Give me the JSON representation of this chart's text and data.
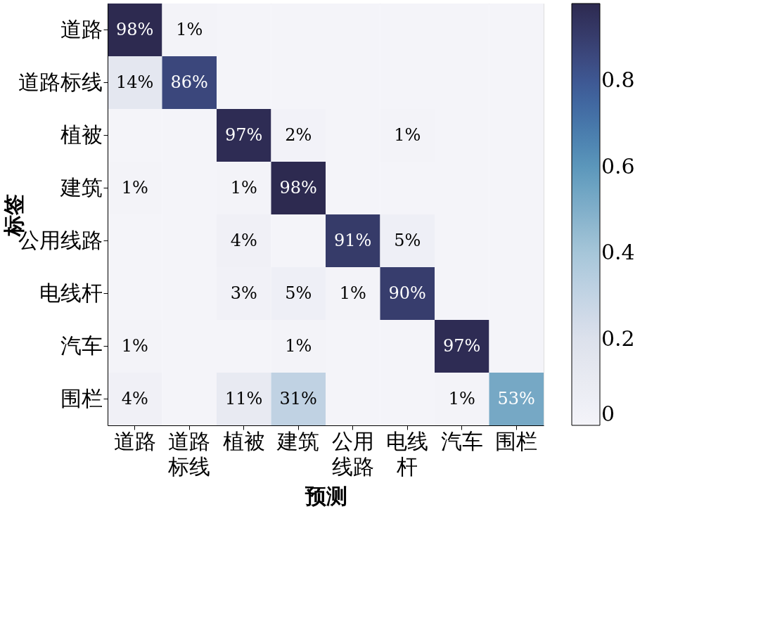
{
  "chart_data": {
    "type": "heatmap",
    "xlabel": "预测",
    "ylabel": "标签",
    "categories": [
      "道路",
      "道路标线",
      "植被",
      "建筑",
      "公用线路",
      "电线杆",
      "汽车",
      "围栏"
    ],
    "y_categories": [
      "道路",
      "道路标线",
      "植被",
      "建筑",
      "公用线路",
      "电线杆",
      "汽车",
      "围栏"
    ],
    "cells": [
      [
        0.98,
        0.01,
        0,
        0,
        0,
        0,
        0,
        0
      ],
      [
        0.14,
        0.86,
        0,
        0,
        0,
        0,
        0,
        0
      ],
      [
        0,
        0,
        0.97,
        0.02,
        0,
        0.01,
        0,
        0
      ],
      [
        0.01,
        0,
        0.01,
        0.98,
        0,
        0,
        0,
        0
      ],
      [
        0,
        0,
        0.04,
        0,
        0.91,
        0.05,
        0,
        0
      ],
      [
        0,
        0,
        0.03,
        0.05,
        0.01,
        0.9,
        0,
        0
      ],
      [
        0.01,
        0,
        0,
        0.01,
        0,
        0,
        0.97,
        0
      ],
      [
        0.04,
        0,
        0.11,
        0.31,
        0,
        0,
        0.01,
        0.53
      ]
    ],
    "cell_labels": [
      [
        "98%",
        "1%",
        null,
        null,
        null,
        null,
        null,
        null
      ],
      [
        "14%",
        "86%",
        null,
        null,
        null,
        null,
        null,
        null
      ],
      [
        null,
        null,
        "97%",
        "2%",
        null,
        "1%",
        null,
        null
      ],
      [
        "1%",
        null,
        "1%",
        "98%",
        null,
        null,
        null,
        null
      ],
      [
        null,
        null,
        "4%",
        null,
        "91%",
        "5%",
        null,
        null
      ],
      [
        null,
        null,
        "3%",
        "5%",
        "1%",
        "90%",
        null,
        null
      ],
      [
        "1%",
        null,
        null,
        "1%",
        null,
        null,
        "97%",
        null
      ],
      [
        "4%",
        null,
        "11%",
        "31%",
        null,
        null,
        "1%",
        "53%"
      ]
    ],
    "clim": [
      0,
      0.98
    ],
    "cticks": [
      0,
      0.2,
      0.4,
      0.6,
      0.8
    ]
  }
}
